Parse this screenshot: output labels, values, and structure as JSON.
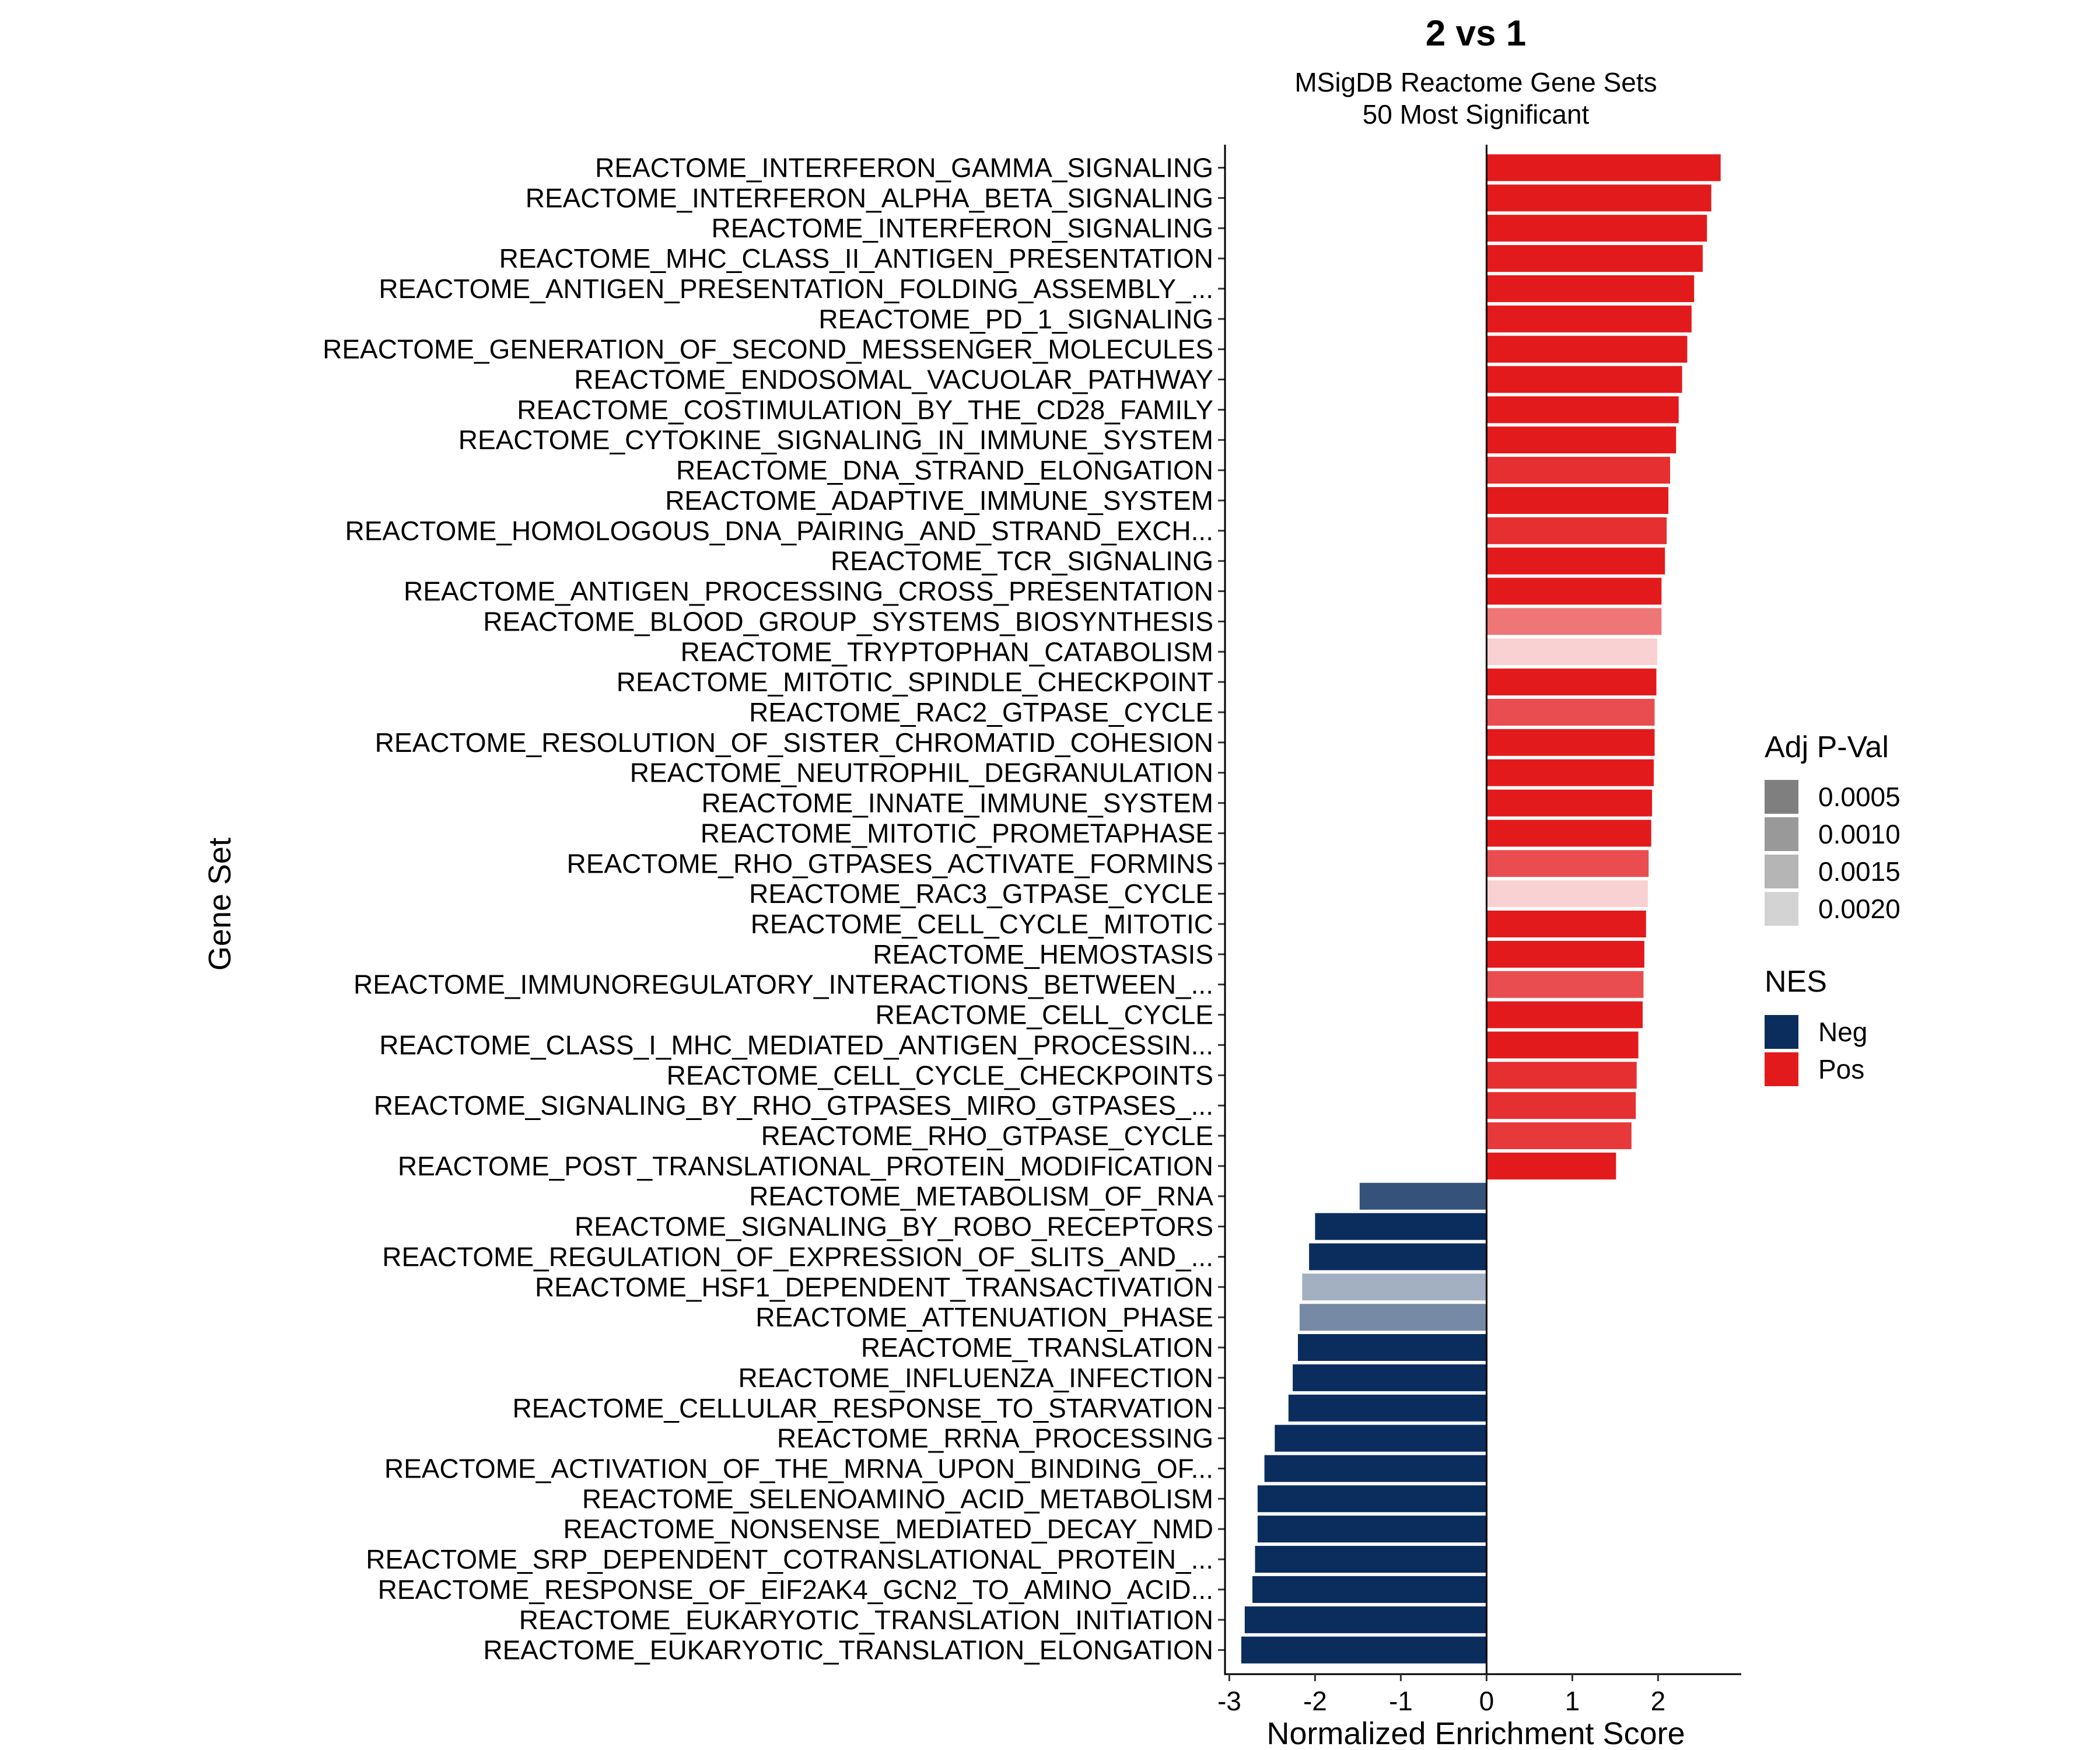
{
  "chart_data": {
    "type": "bar",
    "orientation": "horizontal",
    "title": "2 vs 1",
    "subtitle_lines": [
      "MSigDB Reactome Gene Sets",
      "50 Most Significant"
    ],
    "xlabel": "Normalized Enrichment Score",
    "ylabel": "Gene Set",
    "xlim": [
      -3.05,
      2.97
    ],
    "xticks": [
      -3,
      -2,
      -1,
      0,
      1,
      2
    ],
    "xtick_labels": [
      "-3",
      "-2",
      "-1",
      "0",
      "1",
      "2"
    ],
    "grid": false,
    "legend_position": "right",
    "colors": {
      "Neg": "#0a2d5e",
      "Pos": "#e31a1c"
    },
    "legend": {
      "padj": {
        "title": "Adj P-Val",
        "entries": [
          {
            "label": "0.0005",
            "color": "#7f7f7f"
          },
          {
            "label": "0.0010",
            "color": "#999999"
          },
          {
            "label": "0.0015",
            "color": "#b5b5b5"
          },
          {
            "label": "0.0020",
            "color": "#d3d3d3"
          }
        ]
      },
      "nes": {
        "title": "NES",
        "entries": [
          {
            "label": "Neg",
            "color": "#0a2d5e"
          },
          {
            "label": "Pos",
            "color": "#e31a1c"
          }
        ]
      }
    },
    "bars": [
      {
        "label": "REACTOME_INTERFERON_GAMMA_SIGNALING",
        "value": 2.73,
        "padj": 0.0003
      },
      {
        "label": "REACTOME_INTERFERON_ALPHA_BETA_SIGNALING",
        "value": 2.62,
        "padj": 0.0003
      },
      {
        "label": "REACTOME_INTERFERON_SIGNALING",
        "value": 2.57,
        "padj": 0.0003
      },
      {
        "label": "REACTOME_MHC_CLASS_II_ANTIGEN_PRESENTATION",
        "value": 2.52,
        "padj": 0.0003
      },
      {
        "label": "REACTOME_ANTIGEN_PRESENTATION_FOLDING_ASSEMBLY_...",
        "value": 2.42,
        "padj": 0.0003
      },
      {
        "label": "REACTOME_PD_1_SIGNALING",
        "value": 2.39,
        "padj": 0.0003
      },
      {
        "label": "REACTOME_GENERATION_OF_SECOND_MESSENGER_MOLECULES",
        "value": 2.34,
        "padj": 0.0003
      },
      {
        "label": "REACTOME_ENDOSOMAL_VACUOLAR_PATHWAY",
        "value": 2.28,
        "padj": 0.0003
      },
      {
        "label": "REACTOME_COSTIMULATION_BY_THE_CD28_FAMILY",
        "value": 2.24,
        "padj": 0.0003
      },
      {
        "label": "REACTOME_CYTOKINE_SIGNALING_IN_IMMUNE_SYSTEM",
        "value": 2.21,
        "padj": 0.0003
      },
      {
        "label": "REACTOME_DNA_STRAND_ELONGATION",
        "value": 2.14,
        "padj": 0.0005
      },
      {
        "label": "REACTOME_ADAPTIVE_IMMUNE_SYSTEM",
        "value": 2.12,
        "padj": 0.0003
      },
      {
        "label": "REACTOME_HOMOLOGOUS_DNA_PAIRING_AND_STRAND_EXCH...",
        "value": 2.1,
        "padj": 0.0005
      },
      {
        "label": "REACTOME_TCR_SIGNALING",
        "value": 2.08,
        "padj": 0.0003
      },
      {
        "label": "REACTOME_ANTIGEN_PROCESSING_CROSS_PRESENTATION",
        "value": 2.04,
        "padj": 0.0003
      },
      {
        "label": "REACTOME_BLOOD_GROUP_SYSTEMS_BIOSYNTHESIS",
        "value": 2.04,
        "padj": 0.0012
      },
      {
        "label": "REACTOME_TRYPTOPHAN_CATABOLISM",
        "value": 1.99,
        "padj": 0.0021
      },
      {
        "label": "REACTOME_MITOTIC_SPINDLE_CHECKPOINT",
        "value": 1.98,
        "padj": 0.0003
      },
      {
        "label": "REACTOME_RAC2_GTPASE_CYCLE",
        "value": 1.96,
        "padj": 0.0008
      },
      {
        "label": "REACTOME_RESOLUTION_OF_SISTER_CHROMATID_COHESION",
        "value": 1.96,
        "padj": 0.0003
      },
      {
        "label": "REACTOME_NEUTROPHIL_DEGRANULATION",
        "value": 1.95,
        "padj": 0.0003
      },
      {
        "label": "REACTOME_INNATE_IMMUNE_SYSTEM",
        "value": 1.93,
        "padj": 0.0003
      },
      {
        "label": "REACTOME_MITOTIC_PROMETAPHASE",
        "value": 1.92,
        "padj": 0.0003
      },
      {
        "label": "REACTOME_RHO_GTPASES_ACTIVATE_FORMINS",
        "value": 1.89,
        "padj": 0.0008
      },
      {
        "label": "REACTOME_RAC3_GTPASE_CYCLE",
        "value": 1.88,
        "padj": 0.0021
      },
      {
        "label": "REACTOME_CELL_CYCLE_MITOTIC",
        "value": 1.86,
        "padj": 0.0003
      },
      {
        "label": "REACTOME_HEMOSTASIS",
        "value": 1.84,
        "padj": 0.0003
      },
      {
        "label": "REACTOME_IMMUNOREGULATORY_INTERACTIONS_BETWEEN_...",
        "value": 1.83,
        "padj": 0.0008
      },
      {
        "label": "REACTOME_CELL_CYCLE",
        "value": 1.82,
        "padj": 0.0003
      },
      {
        "label": "REACTOME_CLASS_I_MHC_MEDIATED_ANTIGEN_PROCESSIN...",
        "value": 1.77,
        "padj": 0.0003
      },
      {
        "label": "REACTOME_CELL_CYCLE_CHECKPOINTS",
        "value": 1.75,
        "padj": 0.0005
      },
      {
        "label": "REACTOME_SIGNALING_BY_RHO_GTPASES_MIRO_GTPASES_...",
        "value": 1.74,
        "padj": 0.0005
      },
      {
        "label": "REACTOME_RHO_GTPASE_CYCLE",
        "value": 1.69,
        "padj": 0.0006
      },
      {
        "label": "REACTOME_POST_TRANSLATIONAL_PROTEIN_MODIFICATION",
        "value": 1.51,
        "padj": 0.0003
      },
      {
        "label": "REACTOME_METABOLISM_OF_RNA",
        "value": -1.48,
        "padj": 0.0007
      },
      {
        "label": "REACTOME_SIGNALING_BY_ROBO_RECEPTORS",
        "value": -2.0,
        "padj": 0.0003
      },
      {
        "label": "REACTOME_REGULATION_OF_EXPRESSION_OF_SLITS_AND_...",
        "value": -2.07,
        "padj": 0.0003
      },
      {
        "label": "REACTOME_HSF1_DEPENDENT_TRANSACTIVATION",
        "value": -2.15,
        "padj": 0.0017
      },
      {
        "label": "REACTOME_ATTENUATION_PHASE",
        "value": -2.18,
        "padj": 0.0013
      },
      {
        "label": "REACTOME_TRANSLATION",
        "value": -2.2,
        "padj": 0.0003
      },
      {
        "label": "REACTOME_INFLUENZA_INFECTION",
        "value": -2.26,
        "padj": 0.0003
      },
      {
        "label": "REACTOME_CELLULAR_RESPONSE_TO_STARVATION",
        "value": -2.31,
        "padj": 0.0003
      },
      {
        "label": "REACTOME_RRNA_PROCESSING",
        "value": -2.47,
        "padj": 0.0003
      },
      {
        "label": "REACTOME_ACTIVATION_OF_THE_MRNA_UPON_BINDING_OF...",
        "value": -2.59,
        "padj": 0.0003
      },
      {
        "label": "REACTOME_SELENOAMINO_ACID_METABOLISM",
        "value": -2.67,
        "padj": 0.0003
      },
      {
        "label": "REACTOME_NONSENSE_MEDIATED_DECAY_NMD",
        "value": -2.67,
        "padj": 0.0003
      },
      {
        "label": "REACTOME_SRP_DEPENDENT_COTRANSLATIONAL_PROTEIN_...",
        "value": -2.7,
        "padj": 0.0003
      },
      {
        "label": "REACTOME_RESPONSE_OF_EIF2AK4_GCN2_TO_AMINO_ACID...",
        "value": -2.73,
        "padj": 0.0003
      },
      {
        "label": "REACTOME_EUKARYOTIC_TRANSLATION_INITIATION",
        "value": -2.82,
        "padj": 0.0003
      },
      {
        "label": "REACTOME_EUKARYOTIC_TRANSLATION_ELONGATION",
        "value": -2.86,
        "padj": 0.0003
      }
    ]
  }
}
